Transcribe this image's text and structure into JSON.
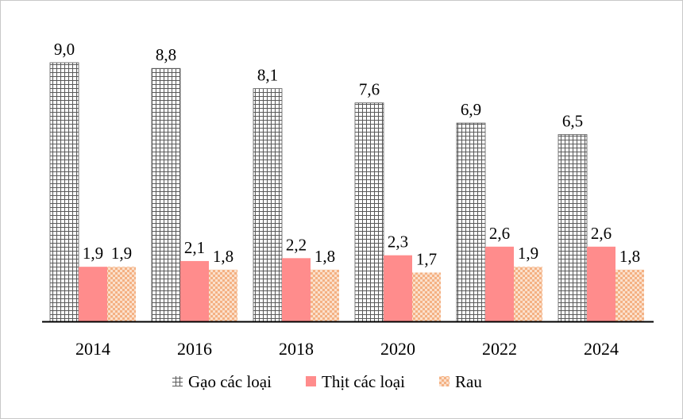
{
  "chart_data": {
    "type": "bar",
    "title": "",
    "xlabel": "",
    "ylabel": "",
    "categories": [
      "2014",
      "2016",
      "2018",
      "2020",
      "2022",
      "2024"
    ],
    "series": [
      {
        "name": "Gạo các loại",
        "values": [
          9.0,
          8.8,
          8.1,
          7.6,
          6.9,
          6.5
        ],
        "labels": [
          "9,0",
          "8,8",
          "8,1",
          "7,6",
          "6,9",
          "6,5"
        ],
        "color": "#595959",
        "pattern": "grid"
      },
      {
        "name": "Thịt các loại",
        "values": [
          1.9,
          2.1,
          2.2,
          2.3,
          2.6,
          2.6
        ],
        "labels": [
          "1,9",
          "2,1",
          "2,2",
          "2,3",
          "2,6",
          "2,6"
        ],
        "color": "#ff8c8c",
        "pattern": "solid"
      },
      {
        "name": "Rau",
        "values": [
          1.9,
          1.8,
          1.8,
          1.7,
          1.9,
          1.8
        ],
        "labels": [
          "1,9",
          "1,8",
          "1,8",
          "1,7",
          "1,9",
          "1,8"
        ],
        "color": "#f4b183",
        "pattern": "checker"
      }
    ],
    "ylim": [
      0,
      10
    ],
    "grid": false,
    "legend_position": "bottom"
  }
}
